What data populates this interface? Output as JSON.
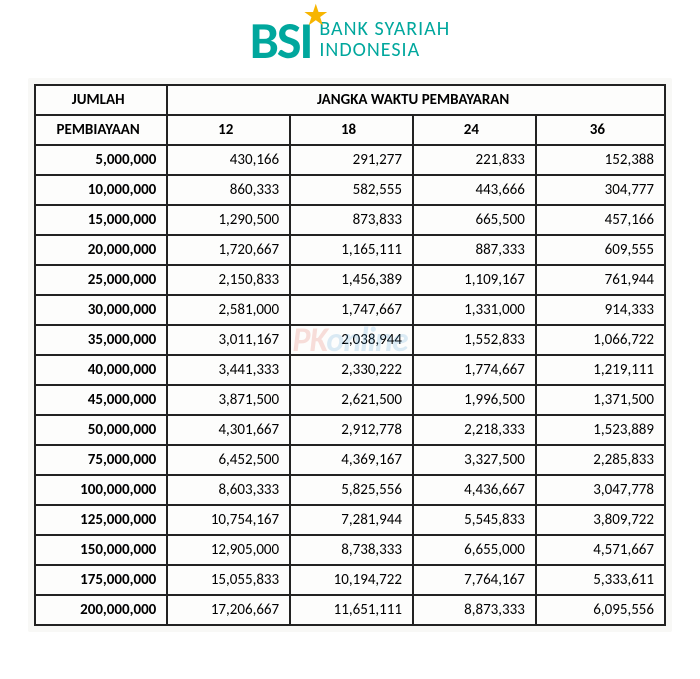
{
  "logo": {
    "mark": "BSI",
    "star": "★",
    "line1": "BANK SYARIAH",
    "line2": "INDONESIA",
    "brand_color": "#00a79d",
    "star_color": "#f7b500"
  },
  "watermark": {
    "prefix": "PK",
    "suffix": "online"
  },
  "table": {
    "type": "table",
    "background_color": "#fdfdfc",
    "border_color": "#222222",
    "header_fontsize": 15,
    "cell_fontsize": 15,
    "amount_fontweight": 700,
    "header_row1_left": "JUMLAH",
    "header_row1_right": "JANGKA WAKTU PEMBAYARAN",
    "header_row2_left": "PEMBIAYAAN",
    "columns": [
      "12",
      "18",
      "24",
      "36"
    ],
    "column_widths_pct": [
      21,
      19.5,
      19.5,
      19.5,
      20.5
    ],
    "rows": [
      {
        "amount": "5,000,000",
        "v": [
          "430,166",
          "291,277",
          "221,833",
          "152,388"
        ]
      },
      {
        "amount": "10,000,000",
        "v": [
          "860,333",
          "582,555",
          "443,666",
          "304,777"
        ]
      },
      {
        "amount": "15,000,000",
        "v": [
          "1,290,500",
          "873,833",
          "665,500",
          "457,166"
        ]
      },
      {
        "amount": "20,000,000",
        "v": [
          "1,720,667",
          "1,165,111",
          "887,333",
          "609,555"
        ]
      },
      {
        "amount": "25,000,000",
        "v": [
          "2,150,833",
          "1,456,389",
          "1,109,167",
          "761,944"
        ]
      },
      {
        "amount": "30,000,000",
        "v": [
          "2,581,000",
          "1,747,667",
          "1,331,000",
          "914,333"
        ]
      },
      {
        "amount": "35,000,000",
        "v": [
          "3,011,167",
          "2,038,944",
          "1,552,833",
          "1,066,722"
        ]
      },
      {
        "amount": "40,000,000",
        "v": [
          "3,441,333",
          "2,330,222",
          "1,774,667",
          "1,219,111"
        ]
      },
      {
        "amount": "45,000,000",
        "v": [
          "3,871,500",
          "2,621,500",
          "1,996,500",
          "1,371,500"
        ]
      },
      {
        "amount": "50,000,000",
        "v": [
          "4,301,667",
          "2,912,778",
          "2,218,333",
          "1,523,889"
        ]
      },
      {
        "amount": "75,000,000",
        "v": [
          "6,452,500",
          "4,369,167",
          "3,327,500",
          "2,285,833"
        ]
      },
      {
        "amount": "100,000,000",
        "v": [
          "8,603,333",
          "5,825,556",
          "4,436,667",
          "3,047,778"
        ]
      },
      {
        "amount": "125,000,000",
        "v": [
          "10,754,167",
          "7,281,944",
          "5,545,833",
          "3,809,722"
        ]
      },
      {
        "amount": "150,000,000",
        "v": [
          "12,905,000",
          "8,738,333",
          "6,655,000",
          "4,571,667"
        ]
      },
      {
        "amount": "175,000,000",
        "v": [
          "15,055,833",
          "10,194,722",
          "7,764,167",
          "5,333,611"
        ]
      },
      {
        "amount": "200,000,000",
        "v": [
          "17,206,667",
          "11,651,111",
          "8,873,333",
          "6,095,556"
        ]
      }
    ]
  }
}
